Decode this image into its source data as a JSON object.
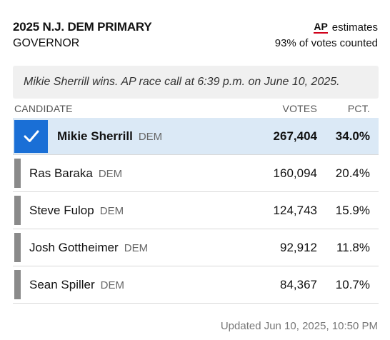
{
  "header": {
    "title": "2025 N.J. DEM PRIMARY",
    "subtitle": "GOVERNOR",
    "ap_logo": "AP",
    "estimates_label": "estimates",
    "votes_counted": "93% of votes counted"
  },
  "callout": "Mikie Sherrill wins. AP race call at 6:39 p.m. on June 10, 2025.",
  "columns": {
    "candidate": "CANDIDATE",
    "votes": "VOTES",
    "pct": "PCT."
  },
  "candidates": [
    {
      "name": "Mikie Sherrill",
      "party": "DEM",
      "votes": "267,404",
      "pct": "34.0%",
      "winner": true
    },
    {
      "name": "Ras Baraka",
      "party": "DEM",
      "votes": "160,094",
      "pct": "20.4%",
      "winner": false
    },
    {
      "name": "Steve Fulop",
      "party": "DEM",
      "votes": "124,743",
      "pct": "15.9%",
      "winner": false
    },
    {
      "name": "Josh Gottheimer",
      "party": "DEM",
      "votes": "92,912",
      "pct": "11.8%",
      "winner": false
    },
    {
      "name": "Sean Spiller",
      "party": "DEM",
      "votes": "84,367",
      "pct": "10.7%",
      "winner": false
    }
  ],
  "updated": "Updated  Jun 10, 2025, 10:50 PM",
  "colors": {
    "winner_row_bg": "#dbe9f6",
    "check_bg": "#1a6fd6",
    "candidate_bar": "#8a8a8a",
    "ap_underline": "#d0021b"
  },
  "icons": {
    "winner": "checkmark-icon",
    "ap": "ap-logo"
  }
}
